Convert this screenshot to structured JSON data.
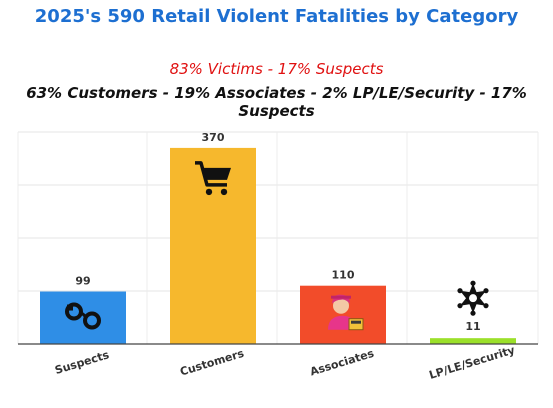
{
  "chart_data": {
    "type": "bar",
    "title": "2025's 590 Retail Violent Fatalities by Category",
    "subtitle": "83% Victims - 17% Suspects",
    "subtitle2": "63% Customers - 19% Associates - 2% LP/LE/Security - 17% Suspects",
    "categories": [
      "Suspects",
      "Customers",
      "Associates",
      "LP/LE/Security"
    ],
    "values": [
      99,
      370,
      110,
      11
    ],
    "colors": [
      "#2f8ee6",
      "#f6b82d",
      "#f24c2a",
      "#9be02a"
    ],
    "icons": [
      "handcuffs-icon",
      "shopping-cart-icon",
      "cashier-icon",
      "sheriff-star-icon"
    ],
    "ylim": [
      0,
      400
    ],
    "grid": true,
    "xlabel": "",
    "ylabel": ""
  }
}
